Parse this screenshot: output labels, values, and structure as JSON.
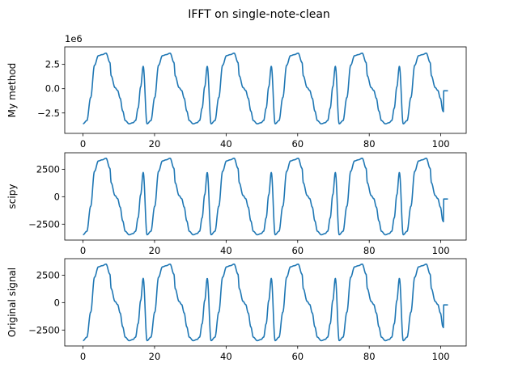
{
  "figure": {
    "title": "IFFT on single-note-clean"
  },
  "chart_data": [
    {
      "type": "line",
      "ylabel": "My method",
      "offset_text": "1e6",
      "xlim": [
        -5.1,
        107.1
      ],
      "ylim": [
        -4.6,
        4.3
      ],
      "xticks": [
        0,
        20,
        40,
        60,
        80,
        100
      ],
      "xtick_labels": [
        "0",
        "20",
        "40",
        "60",
        "80",
        "100"
      ],
      "yticks": [
        -2.5,
        0,
        2.5
      ],
      "ytick_labels": [
        "−2.5",
        "0.0",
        "2.5"
      ],
      "grid": false,
      "color": "#1f77b4",
      "series": [
        {
          "period": 17.9,
          "x_start": 0,
          "x_end": 102,
          "amplitude": 3.65,
          "shape_phase": [
            0.0,
            0.06,
            0.12,
            0.18,
            0.24,
            0.3,
            0.36,
            0.42,
            0.44,
            0.5,
            0.54,
            0.58,
            0.62,
            0.66,
            0.72,
            0.78,
            0.82,
            0.86,
            0.9,
            0.94,
            1.0
          ],
          "shape_value": [
            -3.6,
            -3.3,
            -0.9,
            2.4,
            3.4,
            3.5,
            3.7,
            2.7,
            1.3,
            0.1,
            -0.2,
            -1.0,
            -2.3,
            -3.3,
            -3.6,
            -3.5,
            -3.3,
            -2.0,
            0.2,
            2.3,
            -3.6
          ]
        }
      ]
    },
    {
      "type": "line",
      "ylabel": "scipy",
      "xlim": [
        -5.1,
        107.1
      ],
      "ylim": [
        -3950,
        4000
      ],
      "xticks": [
        0,
        20,
        40,
        60,
        80,
        100
      ],
      "xtick_labels": [
        "0",
        "20",
        "40",
        "60",
        "80",
        "100"
      ],
      "yticks": [
        -2500,
        0,
        2500
      ],
      "ytick_labels": [
        "−2500",
        "0",
        "2500"
      ],
      "grid": false,
      "color": "#1f77b4",
      "series": [
        {
          "period": 17.9,
          "x_start": 0,
          "x_end": 102,
          "amplitude": 3500
        }
      ]
    },
    {
      "type": "line",
      "ylabel": "Original signal",
      "xlim": [
        -5.1,
        107.1
      ],
      "ylim": [
        -3950,
        4000
      ],
      "xticks": [
        0,
        20,
        40,
        60,
        80,
        100
      ],
      "xtick_labels": [
        "0",
        "20",
        "40",
        "60",
        "80",
        "100"
      ],
      "yticks": [
        -2500,
        0,
        2500
      ],
      "ytick_labels": [
        "−2500",
        "0",
        "2500"
      ],
      "grid": false,
      "color": "#1f77b4",
      "series": [
        {
          "period": 17.9,
          "x_start": 0,
          "x_end": 102,
          "amplitude": 3500
        }
      ]
    }
  ]
}
